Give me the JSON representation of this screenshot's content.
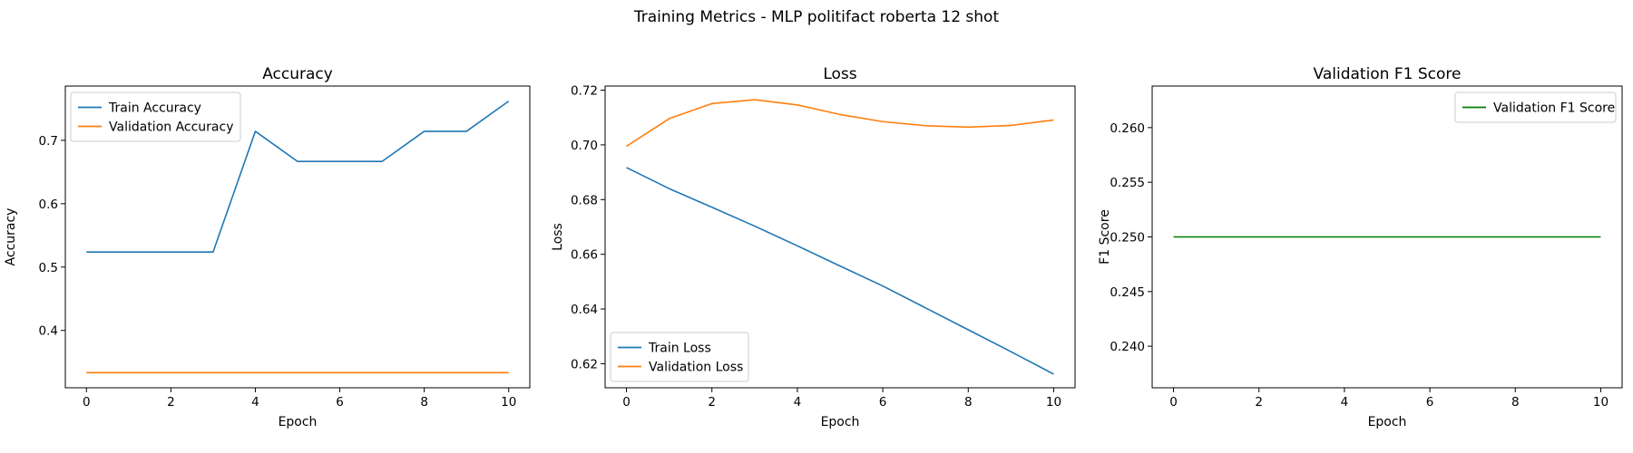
{
  "figure": {
    "title": "Training Metrics - MLP politifact roberta 12 shot"
  },
  "chart_data": [
    {
      "type": "line",
      "title": "Accuracy",
      "xlabel": "Epoch",
      "ylabel": "Accuracy",
      "xlim": [
        -0.5,
        10.5
      ],
      "ylim": [
        0.3095,
        0.7857
      ],
      "xticks": [
        0,
        2,
        4,
        6,
        8,
        10
      ],
      "yticks": [
        0.4,
        0.5,
        0.6,
        0.7
      ],
      "ytick_decimals": 1,
      "grid": false,
      "legend": "upper-left",
      "x": [
        0,
        1,
        2,
        3,
        4,
        5,
        6,
        7,
        8,
        9,
        10
      ],
      "series": [
        {
          "name": "Train Accuracy",
          "color": "#1f77b4",
          "values": [
            0.5238,
            0.5238,
            0.5238,
            0.5238,
            0.7143,
            0.6667,
            0.6667,
            0.6667,
            0.7143,
            0.7143,
            0.7619
          ]
        },
        {
          "name": "Validation Accuracy",
          "color": "#ff7f0e",
          "values": [
            0.3333,
            0.3333,
            0.3333,
            0.3333,
            0.3333,
            0.3333,
            0.3333,
            0.3333,
            0.3333,
            0.3333,
            0.3333
          ]
        }
      ]
    },
    {
      "type": "line",
      "title": "Loss",
      "xlabel": "Epoch",
      "ylabel": "Loss",
      "xlim": [
        -0.5,
        10.5
      ],
      "ylim": [
        0.6112,
        0.7215
      ],
      "xticks": [
        0,
        2,
        4,
        6,
        8,
        10
      ],
      "yticks": [
        0.62,
        0.64,
        0.66,
        0.68,
        0.7,
        0.72
      ],
      "ytick_decimals": 2,
      "grid": false,
      "legend": "lower-left",
      "x": [
        0,
        1,
        2,
        3,
        4,
        5,
        6,
        7,
        8,
        9,
        10
      ],
      "series": [
        {
          "name": "Train Loss",
          "color": "#1f77b4",
          "values": [
            0.6917,
            0.684,
            0.6772,
            0.6703,
            0.6631,
            0.6557,
            0.6484,
            0.6404,
            0.6324,
            0.6244,
            0.6162
          ]
        },
        {
          "name": "Validation Loss",
          "color": "#ff7f0e",
          "values": [
            0.6995,
            0.7096,
            0.7151,
            0.7165,
            0.7146,
            0.7111,
            0.7085,
            0.707,
            0.7065,
            0.7071,
            0.7091
          ]
        }
      ]
    },
    {
      "type": "line",
      "title": "Validation F1 Score",
      "xlabel": "Epoch",
      "ylabel": "F1 Score",
      "xlim": [
        -0.5,
        10.5
      ],
      "ylim": [
        0.2362,
        0.2638
      ],
      "xticks": [
        0,
        2,
        4,
        6,
        8,
        10
      ],
      "yticks": [
        0.24,
        0.245,
        0.25,
        0.255,
        0.26
      ],
      "ytick_decimals": 3,
      "grid": false,
      "legend": "upper-right",
      "x": [
        0,
        1,
        2,
        3,
        4,
        5,
        6,
        7,
        8,
        9,
        10
      ],
      "series": [
        {
          "name": "Validation F1 Score",
          "color": "#008000",
          "values": [
            0.25,
            0.25,
            0.25,
            0.25,
            0.25,
            0.25,
            0.25,
            0.25,
            0.25,
            0.25,
            0.25
          ]
        }
      ]
    }
  ]
}
